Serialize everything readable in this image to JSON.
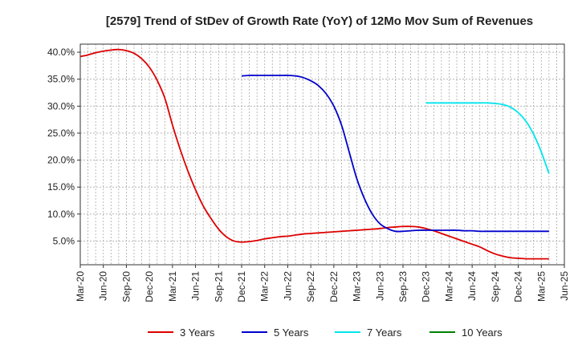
{
  "chart_data": {
    "type": "line",
    "title": "[2579]  Trend of StDev of Growth Rate (YoY) of 12Mo Mov Sum of Revenues",
    "xlabel": "",
    "ylabel": "",
    "x_ticks": [
      "Mar-20",
      "Jun-20",
      "Sep-20",
      "Dec-20",
      "Mar-21",
      "Jun-21",
      "Sep-21",
      "Dec-21",
      "Mar-22",
      "Jun-22",
      "Sep-22",
      "Dec-22",
      "Mar-23",
      "Jun-23",
      "Sep-23",
      "Dec-23",
      "Mar-24",
      "Jun-24",
      "Sep-24",
      "Dec-24",
      "Mar-25",
      "Jun-25"
    ],
    "y_ticks": [
      "5.0%",
      "10.0%",
      "15.0%",
      "20.0%",
      "25.0%",
      "30.0%",
      "35.0%",
      "40.0%"
    ],
    "ylim": [
      0.6,
      41.5
    ],
    "grid": true,
    "legend_position": "bottom",
    "series": [
      {
        "name": "3 Years",
        "color": "#dd0000",
        "x": [
          0,
          1,
          2,
          3,
          4,
          5,
          6,
          7,
          8,
          9,
          10,
          11,
          12,
          13,
          14,
          15,
          16,
          17,
          18,
          19,
          20,
          21,
          22,
          23,
          24,
          25,
          26,
          27,
          28,
          29,
          30,
          31,
          32,
          33,
          34,
          35,
          36,
          37,
          38,
          39,
          40,
          41,
          42,
          43,
          44,
          45,
          46,
          47,
          48,
          49,
          50,
          51,
          52,
          53,
          54,
          55,
          56,
          57,
          58,
          59,
          60,
          61
        ],
        "values": [
          39.2,
          39.5,
          39.9,
          40.2,
          40.4,
          40.5,
          40.3,
          39.8,
          38.8,
          37.2,
          34.8,
          31.5,
          26.5,
          22.0,
          18.0,
          14.5,
          11.5,
          9.2,
          7.2,
          5.8,
          5.0,
          4.8,
          4.9,
          5.1,
          5.4,
          5.6,
          5.8,
          5.9,
          6.1,
          6.3,
          6.4,
          6.5,
          6.6,
          6.7,
          6.8,
          6.9,
          7.0,
          7.1,
          7.2,
          7.3,
          7.5,
          7.6,
          7.7,
          7.7,
          7.6,
          7.3,
          6.9,
          6.4,
          5.9,
          5.4,
          4.9,
          4.4,
          3.9,
          3.2,
          2.6,
          2.2,
          1.9,
          1.8,
          1.7,
          1.7,
          1.7,
          1.7
        ]
      },
      {
        "name": "5 Years",
        "color": "#0000cc",
        "x": [
          21,
          22,
          23,
          24,
          25,
          26,
          27,
          28,
          29,
          30,
          31,
          32,
          33,
          34,
          35,
          36,
          37,
          38,
          39,
          40,
          41,
          42,
          43,
          44,
          45,
          46,
          47,
          48,
          49,
          50,
          51,
          52,
          53,
          54,
          55,
          56,
          57,
          58,
          59,
          60,
          61
        ],
        "values": [
          35.6,
          35.7,
          35.7,
          35.7,
          35.7,
          35.7,
          35.7,
          35.6,
          35.3,
          34.7,
          33.8,
          32.3,
          30.0,
          26.5,
          21.5,
          16.5,
          12.8,
          10.0,
          8.2,
          7.3,
          6.8,
          6.8,
          6.9,
          7.0,
          7.0,
          7.0,
          7.0,
          7.0,
          7.0,
          6.9,
          6.9,
          6.8,
          6.8,
          6.8,
          6.8,
          6.8,
          6.8,
          6.8,
          6.8,
          6.8,
          6.8
        ]
      },
      {
        "name": "7 Years",
        "color": "#00e5ee",
        "x": [
          45,
          46,
          47,
          48,
          49,
          50,
          51,
          52,
          53,
          54,
          55,
          56,
          57,
          58,
          59,
          60,
          61
        ],
        "values": [
          30.6,
          30.6,
          30.6,
          30.6,
          30.6,
          30.6,
          30.6,
          30.6,
          30.6,
          30.5,
          30.3,
          29.8,
          28.8,
          27.2,
          24.8,
          21.5,
          17.5
        ]
      },
      {
        "name": "10 Years",
        "color": "#008000",
        "x": [],
        "values": []
      }
    ]
  }
}
